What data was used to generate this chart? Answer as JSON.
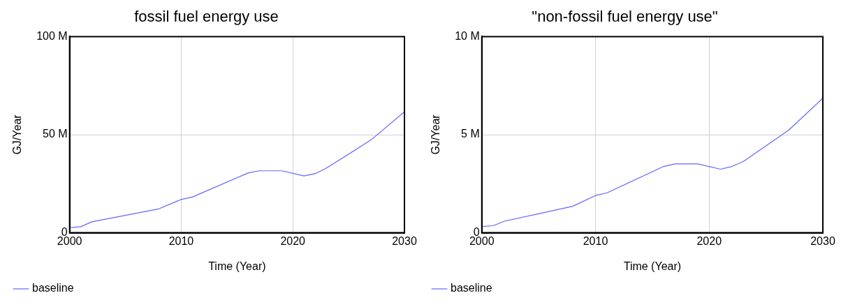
{
  "chart_data": [
    {
      "type": "line",
      "title": "fossil fuel energy use",
      "xlabel": "Time (Year)",
      "ylabel": "GJ/Year",
      "x": [
        2000,
        2001,
        2002,
        2008,
        2010,
        2011,
        2016,
        2017,
        2019,
        2021,
        2022,
        2023,
        2027,
        2030
      ],
      "series": [
        {
          "name": "baseline",
          "color": "#6464ff",
          "values": [
            2.6,
            3.1,
            5.6,
            12.2,
            17,
            18.2,
            30.5,
            31.6,
            31.6,
            29,
            30.1,
            32.9,
            47.3,
            61.7
          ]
        }
      ],
      "xlim": [
        2000,
        2030
      ],
      "xticks": [
        2000,
        2010,
        2020,
        2030
      ],
      "ylim": [
        0,
        100
      ],
      "yticks": [
        {
          "value": 0,
          "label": "0"
        },
        {
          "value": 50,
          "label": "50 M"
        },
        {
          "value": 100,
          "label": "100 M"
        }
      ],
      "grid": true,
      "legend": "bottom left",
      "marker": "none",
      "line_style": "solid"
    },
    {
      "type": "line",
      "title": "\"non-fossil fuel energy use\"",
      "xlabel": "Time (Year)",
      "ylabel": "GJ/Year",
      "x": [
        2000,
        2001,
        2002,
        2008,
        2010,
        2011,
        2016,
        2017,
        2019,
        2021,
        2022,
        2023,
        2027,
        2030
      ],
      "series": [
        {
          "name": "baseline",
          "color": "#6464ff",
          "values": [
            0.32,
            0.36,
            0.59,
            1.35,
            1.9,
            2.03,
            3.38,
            3.51,
            3.51,
            3.24,
            3.38,
            3.63,
            5.23,
            6.86
          ]
        }
      ],
      "xlim": [
        2000,
        2030
      ],
      "xticks": [
        2000,
        2010,
        2020,
        2030
      ],
      "ylim": [
        0,
        10
      ],
      "yticks": [
        {
          "value": 0,
          "label": "0"
        },
        {
          "value": 5,
          "label": "5 M"
        },
        {
          "value": 10,
          "label": "10 M"
        }
      ],
      "grid": true,
      "legend": "bottom left",
      "marker": "none",
      "line_style": "solid"
    }
  ]
}
